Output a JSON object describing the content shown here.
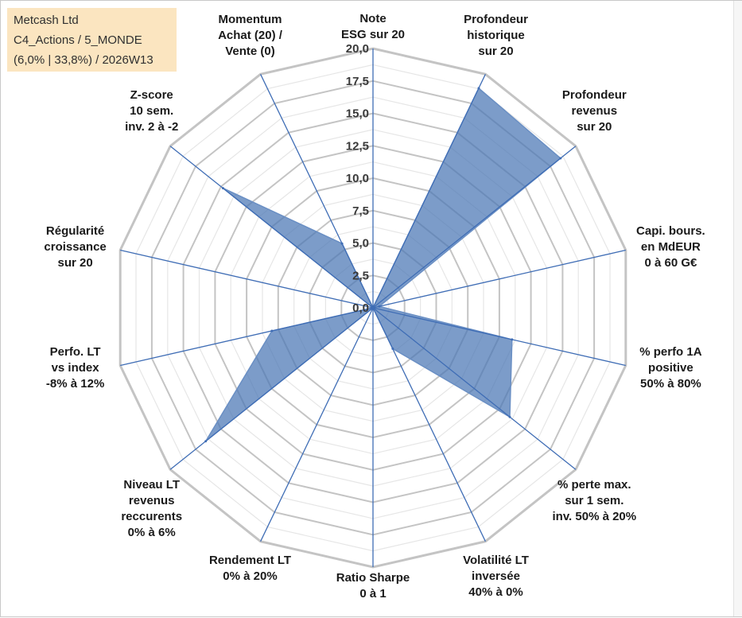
{
  "info": {
    "line1": "Metcash Ltd",
    "line2": "C4_Actions / 5_MONDE",
    "line3": "(6,0% | 33,8%) / 2026W13"
  },
  "chart_data": {
    "type": "radar",
    "title": "Metcash Ltd",
    "rlim": [
      0,
      20
    ],
    "tick_values": [
      0,
      2.5,
      5,
      7.5,
      10,
      12.5,
      15,
      17.5,
      20
    ],
    "tick_labels": [
      "0,0",
      "2,5",
      "5,0",
      "7,5",
      "10,0",
      "12,5",
      "15,0",
      "17,5",
      "20,0"
    ],
    "axes": [
      {
        "label": [
          "Note",
          "ESG sur 20"
        ],
        "value": 0
      },
      {
        "label": [
          "Profondeur",
          "historique",
          "sur 20"
        ],
        "value": 18.8
      },
      {
        "label": [
          "Profondeur",
          "revenus",
          "sur 20"
        ],
        "value": 18.5
      },
      {
        "label": [
          "Capi. bours.",
          "en MdEUR",
          "0 à 60 G€"
        ],
        "value": 0.5
      },
      {
        "label": [
          "% perfo 1A",
          "positive",
          "50% à 80%"
        ],
        "value": 11
      },
      {
        "label": [
          "% perte max.",
          "sur 1 sem.",
          "inv. 50% à 20%"
        ],
        "value": 13.5
      },
      {
        "label": [
          "Volatilité LT",
          "inversée",
          "40% à 0%"
        ],
        "value": 3.5
      },
      {
        "label": [
          "Ratio Sharpe",
          "0 à 1"
        ],
        "value": 0
      },
      {
        "label": [
          "Rendement LT",
          "0% à 20%"
        ],
        "value": 0
      },
      {
        "label": [
          "Niveau LT",
          "revenus",
          "reccurents",
          "0% à 6%"
        ],
        "value": 16.5
      },
      {
        "label": [
          "Perfo. LT",
          "vs index",
          "-8% à 12%"
        ],
        "value": 8
      },
      {
        "label": [
          "Régularité",
          "croissance",
          "sur 20"
        ],
        "value": 0
      },
      {
        "label": [
          "Z-score",
          "10 sem.",
          "inv. 2 à -2"
        ],
        "value": 14.8
      },
      {
        "label": [
          "Momentum",
          "Achat (20) /",
          "Vente (0)"
        ],
        "value": 5.5
      }
    ],
    "series": [
      {
        "name": "Metcash Ltd",
        "color": "#4a76b4"
      }
    ]
  }
}
